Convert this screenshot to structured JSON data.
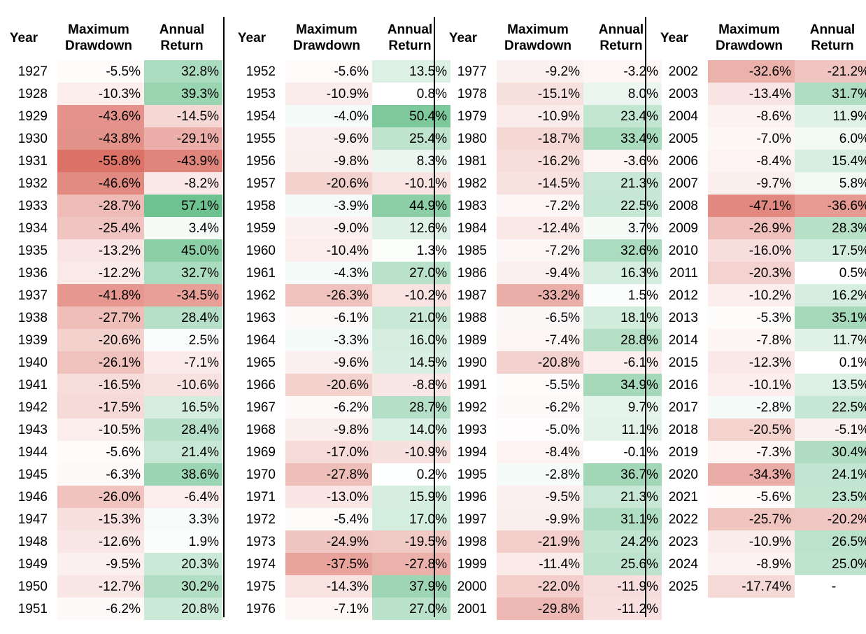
{
  "headers": {
    "year": "Year",
    "drawdown_line1": "Maximum",
    "drawdown_line2": "Drawdown",
    "return_line1": "Annual",
    "return_line2": "Return"
  },
  "colors": {
    "negative": "#d9695e",
    "positive": "#5dbb83",
    "neutral": "#ffffff"
  },
  "columns": [
    {
      "rows": [
        {
          "year": "1927",
          "drawdown": "-5.5%",
          "ret": "32.8%"
        },
        {
          "year": "1928",
          "drawdown": "-10.3%",
          "ret": "39.3%"
        },
        {
          "year": "1929",
          "drawdown": "-43.6%",
          "ret": "-14.5%"
        },
        {
          "year": "1930",
          "drawdown": "-43.8%",
          "ret": "-29.1%"
        },
        {
          "year": "1931",
          "drawdown": "-55.8%",
          "ret": "-43.9%"
        },
        {
          "year": "1932",
          "drawdown": "-46.6%",
          "ret": "-8.2%"
        },
        {
          "year": "1933",
          "drawdown": "-28.7%",
          "ret": "57.1%"
        },
        {
          "year": "1934",
          "drawdown": "-25.4%",
          "ret": "3.4%"
        },
        {
          "year": "1935",
          "drawdown": "-13.2%",
          "ret": "45.0%"
        },
        {
          "year": "1936",
          "drawdown": "-12.2%",
          "ret": "32.7%"
        },
        {
          "year": "1937",
          "drawdown": "-41.8%",
          "ret": "-34.5%"
        },
        {
          "year": "1938",
          "drawdown": "-27.7%",
          "ret": "28.4%"
        },
        {
          "year": "1939",
          "drawdown": "-20.6%",
          "ret": "2.5%"
        },
        {
          "year": "1940",
          "drawdown": "-26.1%",
          "ret": "-7.1%"
        },
        {
          "year": "1941",
          "drawdown": "-16.5%",
          "ret": "-10.6%"
        },
        {
          "year": "1942",
          "drawdown": "-17.5%",
          "ret": "16.5%"
        },
        {
          "year": "1943",
          "drawdown": "-10.5%",
          "ret": "28.4%"
        },
        {
          "year": "1944",
          "drawdown": "-5.6%",
          "ret": "21.4%"
        },
        {
          "year": "1945",
          "drawdown": "-6.3%",
          "ret": "38.6%"
        },
        {
          "year": "1946",
          "drawdown": "-26.0%",
          "ret": "-6.4%"
        },
        {
          "year": "1947",
          "drawdown": "-15.3%",
          "ret": "3.3%"
        },
        {
          "year": "1948",
          "drawdown": "-12.6%",
          "ret": "1.9%"
        },
        {
          "year": "1949",
          "drawdown": "-9.5%",
          "ret": "20.3%"
        },
        {
          "year": "1950",
          "drawdown": "-12.7%",
          "ret": "30.2%"
        },
        {
          "year": "1951",
          "drawdown": "-6.2%",
          "ret": "20.8%"
        }
      ]
    },
    {
      "rows": [
        {
          "year": "1952",
          "drawdown": "-5.6%",
          "ret": "13.5%"
        },
        {
          "year": "1953",
          "drawdown": "-10.9%",
          "ret": "0.8%"
        },
        {
          "year": "1954",
          "drawdown": "-4.0%",
          "ret": "50.4%"
        },
        {
          "year": "1955",
          "drawdown": "-9.6%",
          "ret": "25.4%"
        },
        {
          "year": "1956",
          "drawdown": "-9.8%",
          "ret": "8.3%"
        },
        {
          "year": "1957",
          "drawdown": "-20.6%",
          "ret": "-10.1%"
        },
        {
          "year": "1958",
          "drawdown": "-3.9%",
          "ret": "44.9%"
        },
        {
          "year": "1959",
          "drawdown": "-9.0%",
          "ret": "12.6%"
        },
        {
          "year": "1960",
          "drawdown": "-10.4%",
          "ret": "1.3%"
        },
        {
          "year": "1961",
          "drawdown": "-4.3%",
          "ret": "27.0%"
        },
        {
          "year": "1962",
          "drawdown": "-26.3%",
          "ret": "-10.2%"
        },
        {
          "year": "1963",
          "drawdown": "-6.1%",
          "ret": "21.0%"
        },
        {
          "year": "1964",
          "drawdown": "-3.3%",
          "ret": "16.0%"
        },
        {
          "year": "1965",
          "drawdown": "-9.6%",
          "ret": "14.5%"
        },
        {
          "year": "1966",
          "drawdown": "-20.6%",
          "ret": "-8.8%"
        },
        {
          "year": "1967",
          "drawdown": "-6.2%",
          "ret": "28.7%"
        },
        {
          "year": "1968",
          "drawdown": "-9.8%",
          "ret": "14.0%"
        },
        {
          "year": "1969",
          "drawdown": "-17.0%",
          "ret": "-10.9%"
        },
        {
          "year": "1970",
          "drawdown": "-27.8%",
          "ret": "0.2%"
        },
        {
          "year": "1971",
          "drawdown": "-13.0%",
          "ret": "15.9%"
        },
        {
          "year": "1972",
          "drawdown": "-5.4%",
          "ret": "17.0%"
        },
        {
          "year": "1973",
          "drawdown": "-24.9%",
          "ret": "-19.5%"
        },
        {
          "year": "1974",
          "drawdown": "-37.5%",
          "ret": "-27.8%"
        },
        {
          "year": "1975",
          "drawdown": "-14.3%",
          "ret": "37.9%"
        },
        {
          "year": "1976",
          "drawdown": "-7.1%",
          "ret": "27.0%"
        }
      ]
    },
    {
      "rows": [
        {
          "year": "1977",
          "drawdown": "-9.2%",
          "ret": "-3.2%"
        },
        {
          "year": "1978",
          "drawdown": "-15.1%",
          "ret": "8.0%"
        },
        {
          "year": "1979",
          "drawdown": "-10.9%",
          "ret": "23.4%"
        },
        {
          "year": "1980",
          "drawdown": "-18.7%",
          "ret": "33.4%"
        },
        {
          "year": "1981",
          "drawdown": "-16.2%",
          "ret": "-3.6%"
        },
        {
          "year": "1982",
          "drawdown": "-14.5%",
          "ret": "21.3%"
        },
        {
          "year": "1983",
          "drawdown": "-7.2%",
          "ret": "22.5%"
        },
        {
          "year": "1984",
          "drawdown": "-12.4%",
          "ret": "3.7%"
        },
        {
          "year": "1985",
          "drawdown": "-7.2%",
          "ret": "32.6%"
        },
        {
          "year": "1986",
          "drawdown": "-9.4%",
          "ret": "16.3%"
        },
        {
          "year": "1987",
          "drawdown": "-33.2%",
          "ret": "1.5%"
        },
        {
          "year": "1988",
          "drawdown": "-6.5%",
          "ret": "18.1%"
        },
        {
          "year": "1989",
          "drawdown": "-7.4%",
          "ret": "28.8%"
        },
        {
          "year": "1990",
          "drawdown": "-20.8%",
          "ret": "-6.1%"
        },
        {
          "year": "1991",
          "drawdown": "-5.5%",
          "ret": "34.9%"
        },
        {
          "year": "1992",
          "drawdown": "-6.2%",
          "ret": "9.7%"
        },
        {
          "year": "1993",
          "drawdown": "-5.0%",
          "ret": "11.1%"
        },
        {
          "year": "1994",
          "drawdown": "-8.4%",
          "ret": "-0.1%"
        },
        {
          "year": "1995",
          "drawdown": "-2.8%",
          "ret": "36.7%"
        },
        {
          "year": "1996",
          "drawdown": "-9.5%",
          "ret": "21.3%"
        },
        {
          "year": "1997",
          "drawdown": "-9.9%",
          "ret": "31.1%"
        },
        {
          "year": "1998",
          "drawdown": "-21.9%",
          "ret": "24.2%"
        },
        {
          "year": "1999",
          "drawdown": "-11.4%",
          "ret": "25.6%"
        },
        {
          "year": "2000",
          "drawdown": "-22.0%",
          "ret": "-11.9%"
        },
        {
          "year": "2001",
          "drawdown": "-29.8%",
          "ret": "-11.2%"
        }
      ]
    },
    {
      "rows": [
        {
          "year": "2002",
          "drawdown": "-32.6%",
          "ret": "-21.2%"
        },
        {
          "year": "2003",
          "drawdown": "-13.4%",
          "ret": "31.7%"
        },
        {
          "year": "2004",
          "drawdown": "-8.6%",
          "ret": "11.9%"
        },
        {
          "year": "2005",
          "drawdown": "-7.0%",
          "ret": "6.0%"
        },
        {
          "year": "2006",
          "drawdown": "-8.4%",
          "ret": "15.4%"
        },
        {
          "year": "2007",
          "drawdown": "-9.7%",
          "ret": "5.8%"
        },
        {
          "year": "2008",
          "drawdown": "-47.1%",
          "ret": "-36.6%"
        },
        {
          "year": "2009",
          "drawdown": "-26.9%",
          "ret": "28.3%"
        },
        {
          "year": "2010",
          "drawdown": "-16.0%",
          "ret": "17.5%"
        },
        {
          "year": "2011",
          "drawdown": "-20.3%",
          "ret": "0.5%"
        },
        {
          "year": "2012",
          "drawdown": "-10.2%",
          "ret": "16.2%"
        },
        {
          "year": "2013",
          "drawdown": "-5.3%",
          "ret": "35.1%"
        },
        {
          "year": "2014",
          "drawdown": "-7.8%",
          "ret": "11.7%"
        },
        {
          "year": "2015",
          "drawdown": "-12.3%",
          "ret": "0.1%"
        },
        {
          "year": "2016",
          "drawdown": "-10.1%",
          "ret": "13.5%"
        },
        {
          "year": "2017",
          "drawdown": "-2.8%",
          "ret": "22.5%"
        },
        {
          "year": "2018",
          "drawdown": "-20.5%",
          "ret": "-5.1%"
        },
        {
          "year": "2019",
          "drawdown": "-7.3%",
          "ret": "30.4%"
        },
        {
          "year": "2020",
          "drawdown": "-34.3%",
          "ret": "24.1%"
        },
        {
          "year": "2021",
          "drawdown": "-5.6%",
          "ret": "23.5%"
        },
        {
          "year": "2022",
          "drawdown": "-25.7%",
          "ret": "-20.2%"
        },
        {
          "year": "2023",
          "drawdown": "-10.9%",
          "ret": "26.5%"
        },
        {
          "year": "2024",
          "drawdown": "-8.9%",
          "ret": "25.0%"
        },
        {
          "year": "2025",
          "drawdown": "-17.74%",
          "ret": "-"
        }
      ]
    }
  ]
}
